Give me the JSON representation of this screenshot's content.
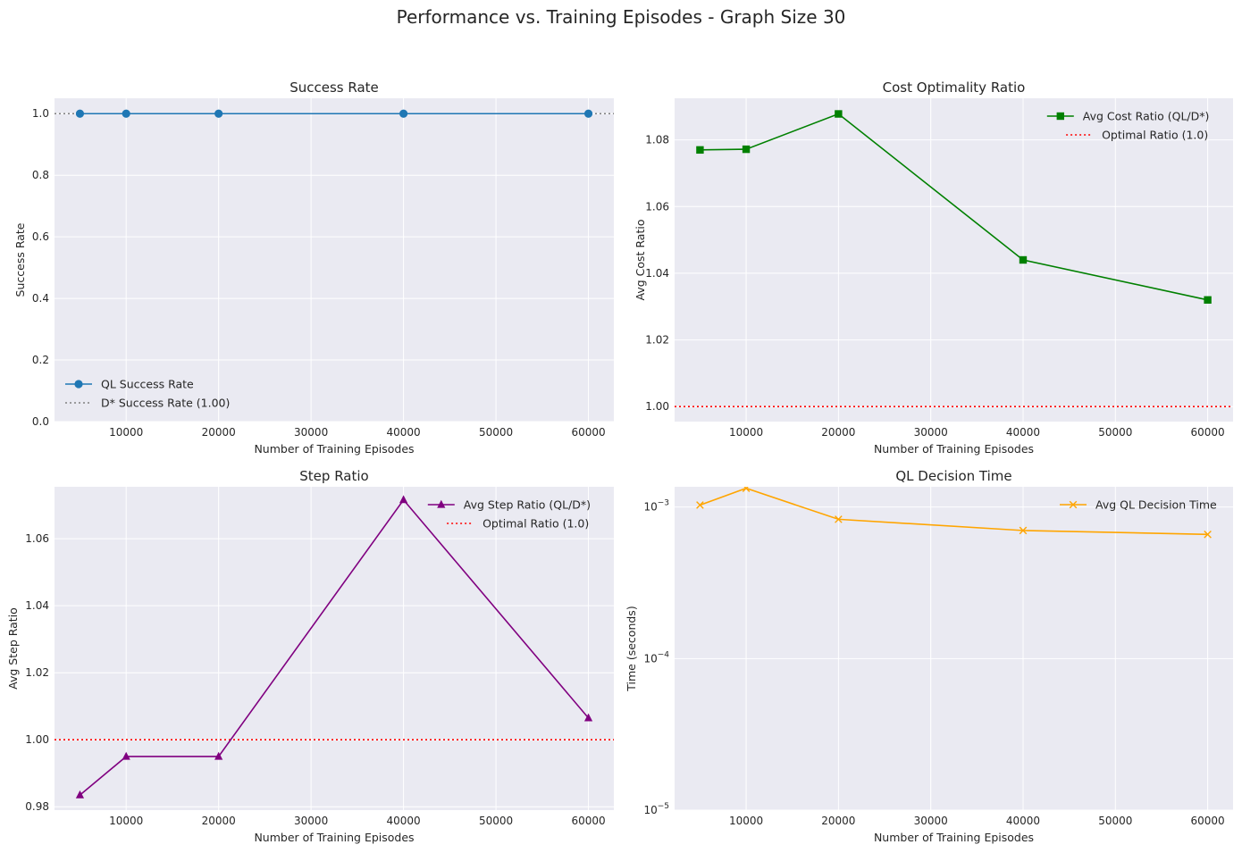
{
  "figure_title": "Performance vs. Training Episodes - Graph Size 30",
  "chart_data": [
    {
      "type": "line",
      "title": "Success Rate",
      "xlabel": "Number of Training Episodes",
      "ylabel": "Success Rate",
      "x": [
        5000,
        10000,
        20000,
        40000,
        60000
      ],
      "xlim": [
        2250,
        62750
      ],
      "ylim": [
        0,
        1.05
      ],
      "yscale": "linear",
      "xticks": [
        10000,
        20000,
        30000,
        40000,
        50000,
        60000
      ],
      "xtick_labels": [
        "10000",
        "20000",
        "30000",
        "40000",
        "50000",
        "60000"
      ],
      "yticks": [
        0,
        0.2,
        0.4,
        0.6,
        0.8,
        1.0
      ],
      "ytick_labels": [
        "0.0",
        "0.2",
        "0.4",
        "0.6",
        "0.8",
        "1.0"
      ],
      "grid": true,
      "legend_position": "lower-left",
      "series": [
        {
          "name": "QL Success Rate",
          "values": [
            1.0,
            1.0,
            1.0,
            1.0,
            1.0
          ],
          "color": "#1f77b4",
          "marker": "circle",
          "linestyle": "solid"
        }
      ],
      "hlines": [
        {
          "name": "D* Success Rate (1.00)",
          "y": 1.0,
          "color": "#808080",
          "linestyle": "dotted"
        }
      ]
    },
    {
      "type": "line",
      "title": "Cost Optimality Ratio",
      "xlabel": "Number of Training Episodes",
      "ylabel": "Avg Cost Ratio",
      "x": [
        5000,
        10000,
        20000,
        40000,
        60000
      ],
      "xlim": [
        2250,
        62750
      ],
      "ylim": [
        0.9955,
        1.0925
      ],
      "yscale": "linear",
      "xticks": [
        10000,
        20000,
        30000,
        40000,
        50000,
        60000
      ],
      "xtick_labels": [
        "10000",
        "20000",
        "30000",
        "40000",
        "50000",
        "60000"
      ],
      "yticks": [
        1.0,
        1.02,
        1.04,
        1.06,
        1.08
      ],
      "ytick_labels": [
        "1.00",
        "1.02",
        "1.04",
        "1.06",
        "1.08"
      ],
      "grid": true,
      "legend_position": "upper-right",
      "series": [
        {
          "name": "Avg Cost Ratio (QL/D*)",
          "values": [
            1.077,
            1.0772,
            1.0878,
            1.044,
            1.032
          ],
          "color": "#008000",
          "marker": "square",
          "linestyle": "solid"
        }
      ],
      "hlines": [
        {
          "name": "Optimal Ratio (1.0)",
          "y": 1.0,
          "color": "#ff0000",
          "linestyle": "dotted"
        }
      ]
    },
    {
      "type": "line",
      "title": "Step Ratio",
      "xlabel": "Number of Training Episodes",
      "ylabel": "Avg Step Ratio",
      "x": [
        5000,
        10000,
        20000,
        40000,
        60000
      ],
      "xlim": [
        2250,
        62750
      ],
      "ylim": [
        0.979,
        1.0755
      ],
      "yscale": "linear",
      "xticks": [
        10000,
        20000,
        30000,
        40000,
        50000,
        60000
      ],
      "xtick_labels": [
        "10000",
        "20000",
        "30000",
        "40000",
        "50000",
        "60000"
      ],
      "yticks": [
        0.98,
        1.0,
        1.02,
        1.04,
        1.06
      ],
      "ytick_labels": [
        "0.98",
        "1.00",
        "1.02",
        "1.04",
        "1.06"
      ],
      "grid": true,
      "legend_position": "upper-right",
      "series": [
        {
          "name": "Avg Step Ratio (QL/D*)",
          "values": [
            0.9835,
            0.995,
            0.995,
            1.0716,
            1.0065
          ],
          "color": "#800080",
          "marker": "triangle",
          "linestyle": "solid"
        }
      ],
      "hlines": [
        {
          "name": "Optimal Ratio (1.0)",
          "y": 1.0,
          "color": "#ff0000",
          "linestyle": "dotted"
        }
      ]
    },
    {
      "type": "line",
      "title": "QL Decision Time",
      "xlabel": "Number of Training Episodes",
      "ylabel": "Time (seconds)",
      "x": [
        5000,
        10000,
        20000,
        40000,
        60000
      ],
      "xlim": [
        2250,
        62750
      ],
      "ylim": [
        1e-05,
        0.00136
      ],
      "yscale": "log",
      "xticks": [
        10000,
        20000,
        30000,
        40000,
        50000,
        60000
      ],
      "xtick_labels": [
        "10000",
        "20000",
        "30000",
        "40000",
        "50000",
        "60000"
      ],
      "yticks": [
        1e-05,
        0.0001,
        0.001
      ],
      "ytick_labels": [
        [
          "10",
          "−5"
        ],
        [
          "10",
          "−4"
        ],
        [
          "10",
          "−3"
        ]
      ],
      "grid": true,
      "legend_position": "upper-right",
      "series": [
        {
          "name": "Avg QL Decision Time",
          "values": [
            0.00103,
            0.00133,
            0.00083,
            0.0007,
            0.00066
          ],
          "color": "#ffa500",
          "marker": "x",
          "linestyle": "solid"
        }
      ],
      "hlines": []
    }
  ]
}
